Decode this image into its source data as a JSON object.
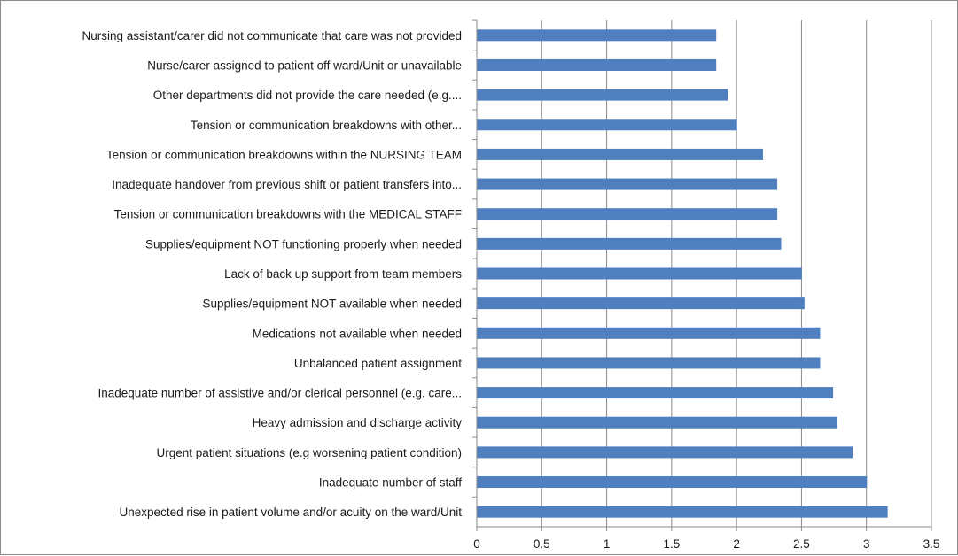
{
  "chart_data": {
    "type": "bar",
    "orientation": "horizontal",
    "categories": [
      "Nursing assistant/carer did not communicate that care was not provided",
      "Nurse/carer assigned to patient off ward/Unit or unavailable",
      "Other departments did not provide the care needed (e.g....",
      "Tension or communication breakdowns with other...",
      "Tension or communication breakdowns within the NURSING TEAM",
      "Inadequate handover from previous shift or patient transfers into...",
      "Tension or communication breakdowns with the MEDICAL STAFF",
      "Supplies/equipment NOT functioning properly when needed",
      "Lack of back up support from team members",
      "Supplies/equipment NOT available when needed",
      "Medications not available when needed",
      "Unbalanced patient assignment",
      "Inadequate number of assistive and/or clerical personnel (e.g. care...",
      "Heavy admission and discharge activity",
      "Urgent patient situations (e.g worsening patient condition)",
      "Inadequate number of staff",
      "Unexpected rise in patient volume and/or acuity on the ward/Unit"
    ],
    "values": [
      1.84,
      1.84,
      1.93,
      2.0,
      2.2,
      2.31,
      2.31,
      2.34,
      2.5,
      2.52,
      2.64,
      2.64,
      2.74,
      2.77,
      2.89,
      3.0,
      3.16
    ],
    "xlim": [
      0,
      3.5
    ],
    "xticks": [
      "0",
      "0.5",
      "1",
      "1.5",
      "2",
      "2.5",
      "3",
      "3.5"
    ],
    "xtick_values": [
      0,
      0.5,
      1,
      1.5,
      2,
      2.5,
      3,
      3.5
    ],
    "grid": "vertical",
    "legend": "none",
    "bar_color": "#4f7fbf",
    "grid_color": "#8a8a8a"
  }
}
